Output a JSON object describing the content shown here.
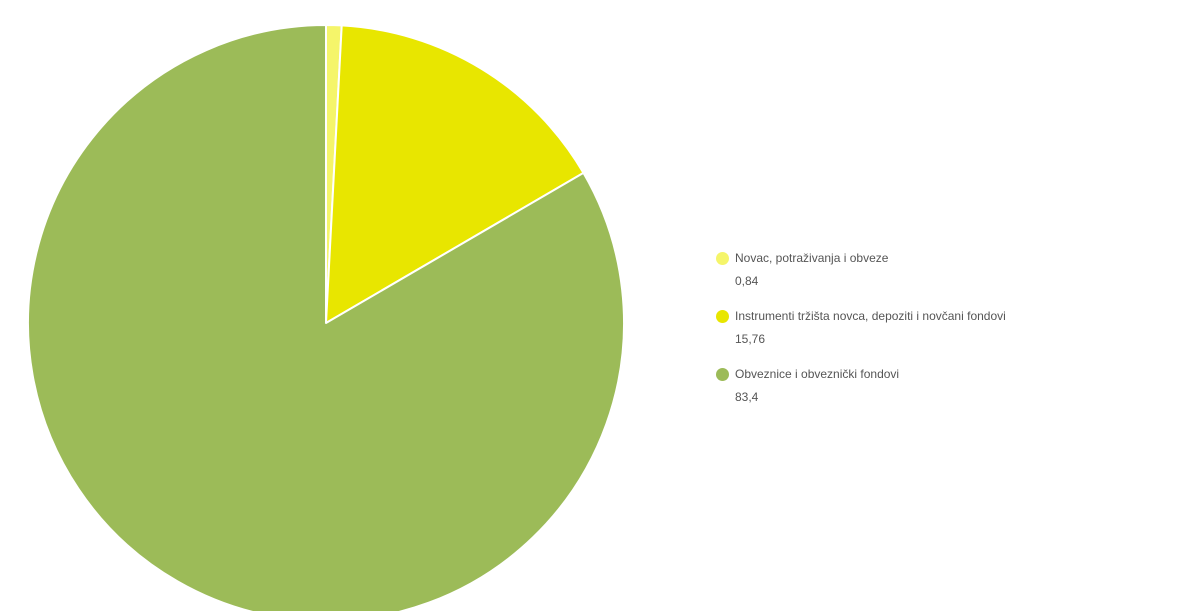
{
  "chart_data": {
    "type": "pie",
    "slices": [
      {
        "label": "Novac, potraživanja i obveze",
        "value": 0.84,
        "value_label": "0,84",
        "color": "#f5f56a"
      },
      {
        "label": "Instrumenti tržišta novca, depoziti i novčani fondovi",
        "value": 15.76,
        "value_label": "15,76",
        "color": "#e8e600"
      },
      {
        "label": "Obveznice i obveznički fondovi",
        "value": 83.4,
        "value_label": "83,4",
        "color": "#9cbb58"
      }
    ],
    "start_angle": "top",
    "direction": "clockwise",
    "legend_position": "right"
  }
}
